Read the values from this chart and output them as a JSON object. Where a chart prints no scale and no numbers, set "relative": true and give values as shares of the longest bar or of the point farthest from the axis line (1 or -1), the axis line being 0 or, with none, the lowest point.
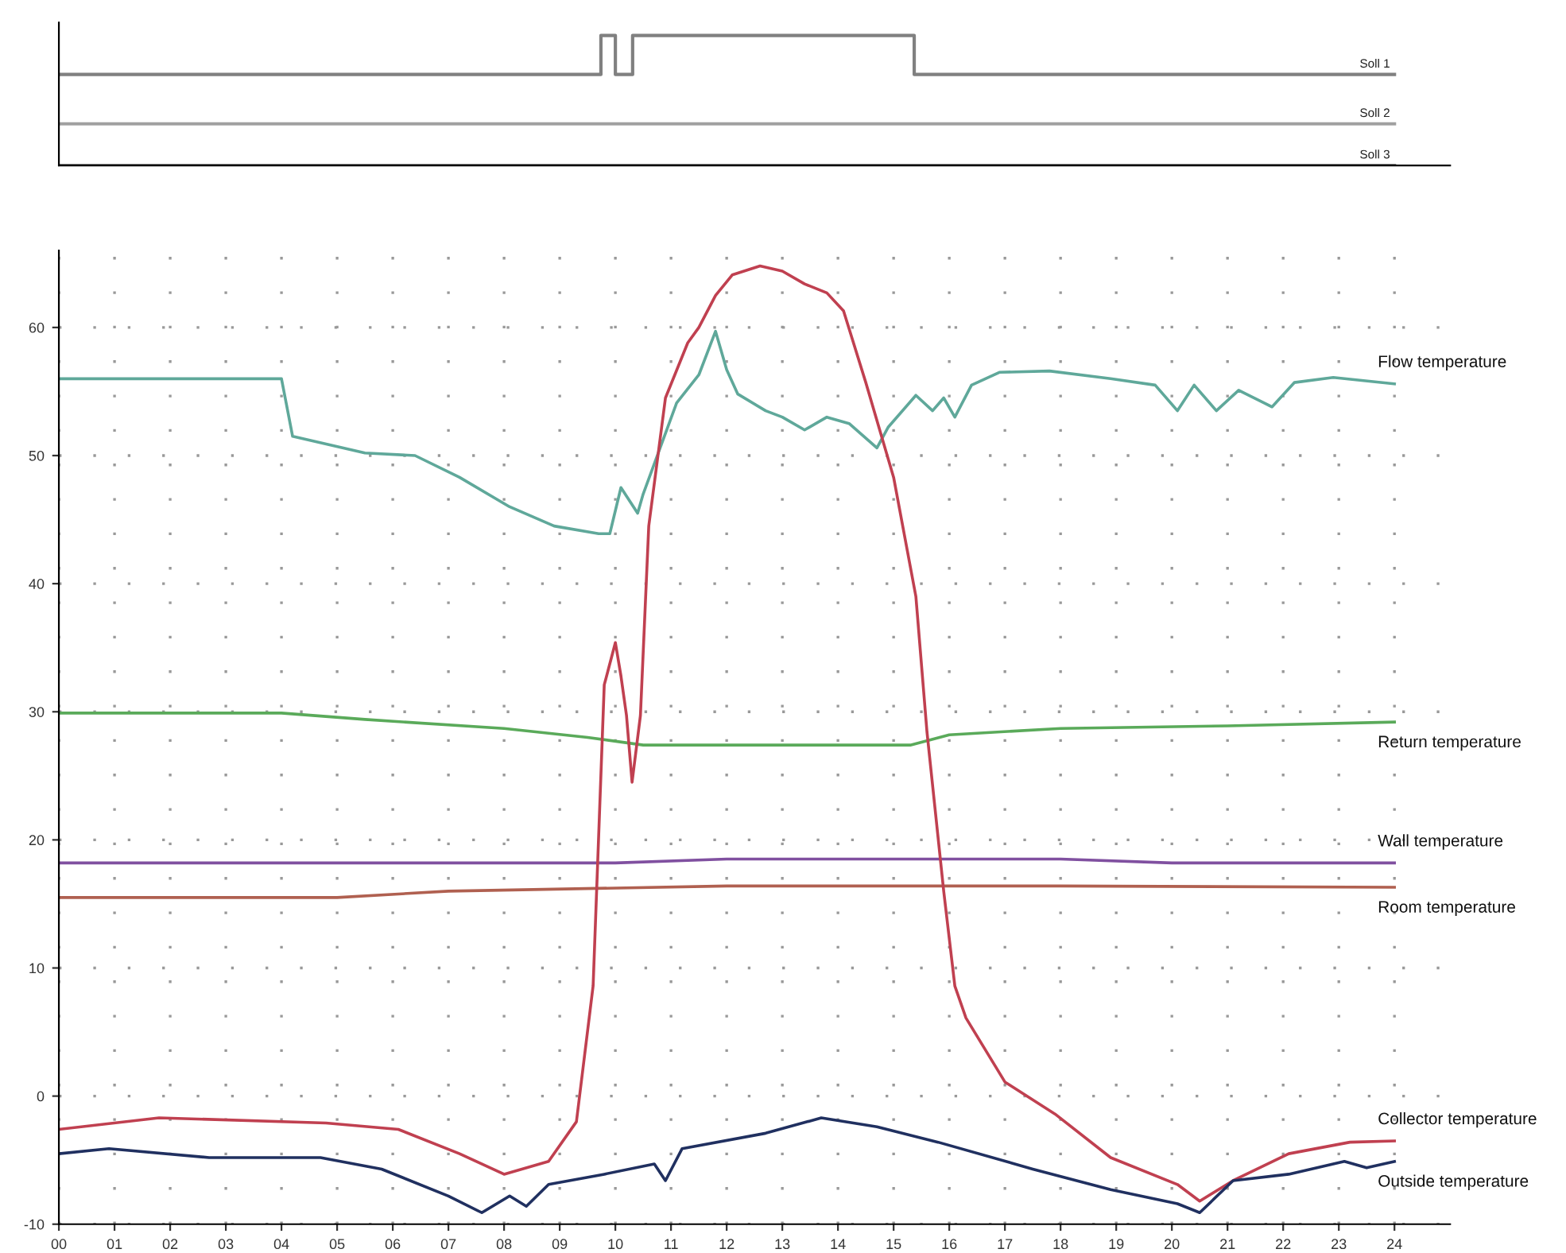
{
  "chart_data": [
    {
      "type": "step",
      "relative": true,
      "tick_labels": false,
      "xlim": [
        0,
        25
      ],
      "grid": false,
      "legend": false,
      "series": [
        {
          "name": "Soll 1",
          "color": "#808080",
          "x": [
            0,
            9.74,
            10.0,
            10.31,
            15.37,
            24
          ],
          "values": [
            0.7,
            1,
            0.7,
            1,
            0.7,
            0.7
          ]
        },
        {
          "name": "Soll 2",
          "color": "#a0a0a0",
          "x": [
            0,
            24
          ],
          "values": [
            0.32,
            0.32
          ]
        },
        {
          "name": "Soll 3",
          "color": "#808080",
          "x": [
            0,
            24
          ],
          "values": [
            0,
            0
          ]
        }
      ]
    },
    {
      "type": "line",
      "xlim": [
        0,
        25
      ],
      "ylim": [
        -10,
        66
      ],
      "grid": true,
      "legend": false,
      "marker": "none",
      "line_style": "solid",
      "xticks": [
        {
          "value": 0,
          "label": "00"
        },
        {
          "value": 1,
          "label": "01"
        },
        {
          "value": 2,
          "label": "02"
        },
        {
          "value": 3,
          "label": "03"
        },
        {
          "value": 4,
          "label": "04"
        },
        {
          "value": 5,
          "label": "05"
        },
        {
          "value": 6,
          "label": "06"
        },
        {
          "value": 7,
          "label": "07"
        },
        {
          "value": 8,
          "label": "08"
        },
        {
          "value": 9,
          "label": "09"
        },
        10,
        11,
        12,
        13,
        14,
        15,
        16,
        17,
        18,
        19,
        20,
        21,
        22,
        23,
        24
      ],
      "yticks": [
        -10,
        0,
        10,
        20,
        30,
        40,
        50,
        60
      ],
      "series": [
        {
          "name": "Flow temperature",
          "color": "#5fa89a",
          "x": [
            0,
            4.0,
            4.2,
            5.5,
            6.4,
            7.2,
            8.1,
            8.9,
            9.7,
            9.9,
            10.1,
            10.4,
            10.5,
            11.1,
            11.5,
            11.8,
            12.0,
            12.2,
            12.7,
            13.0,
            13.4,
            13.8,
            14.2,
            14.7,
            14.9,
            15.4,
            15.7,
            15.9,
            16.1,
            16.4,
            16.9,
            17.8,
            18.9,
            19.7,
            20.1,
            20.4,
            20.8,
            21.2,
            21.8,
            22.2,
            22.9,
            24
          ],
          "values": [
            56.0,
            56.0,
            51.5,
            50.2,
            50.0,
            48.3,
            46.0,
            44.5,
            43.9,
            43.9,
            47.5,
            45.5,
            47.0,
            54.1,
            56.3,
            59.7,
            56.7,
            54.8,
            53.5,
            53.0,
            52.0,
            53.0,
            52.5,
            50.6,
            52.2,
            54.7,
            53.5,
            54.5,
            53.0,
            55.5,
            56.5,
            56.6,
            56.0,
            55.5,
            53.5,
            55.5,
            53.5,
            55.1,
            53.8,
            55.7,
            56.1,
            55.6
          ]
        },
        {
          "name": "Return temperature",
          "color": "#5aaa5a",
          "x": [
            0,
            4,
            5.5,
            8,
            9.5,
            10.5,
            15.3,
            16,
            18,
            21,
            24
          ],
          "values": [
            29.9,
            29.9,
            29.4,
            28.7,
            28.0,
            27.4,
            27.4,
            28.2,
            28.7,
            28.9,
            29.2
          ]
        },
        {
          "name": "Wall temperature",
          "color": "#8050a0",
          "x": [
            0,
            10,
            12,
            18,
            20,
            24
          ],
          "values": [
            18.2,
            18.2,
            18.5,
            18.5,
            18.2,
            18.2
          ]
        },
        {
          "name": "Room temperature",
          "color": "#b06050",
          "x": [
            0,
            5,
            7,
            12,
            18,
            24
          ],
          "values": [
            15.5,
            15.5,
            16.0,
            16.4,
            16.4,
            16.3
          ]
        },
        {
          "name": "Collector temperature",
          "color": "#c04050",
          "x": [
            0,
            1.8,
            4.8,
            6.1,
            7.2,
            8.0,
            8.8,
            9.3,
            9.6,
            9.8,
            10.0,
            10.1,
            10.2,
            10.3,
            10.45,
            10.6,
            10.9,
            11.3,
            11.5,
            11.8,
            12.1,
            12.6,
            13.0,
            13.4,
            13.8,
            14.1,
            14.5,
            15.0,
            15.4,
            15.6,
            15.9,
            16.1,
            16.3,
            17.0,
            17.9,
            18.9,
            20.1,
            20.5,
            21.1,
            22.1,
            23.2,
            24
          ],
          "values": [
            -2.6,
            -1.7,
            -2.1,
            -2.6,
            -4.5,
            -6.1,
            -5.1,
            -2.0,
            8.6,
            32.1,
            35.4,
            32.8,
            29.7,
            24.5,
            29.7,
            44.5,
            54.5,
            58.8,
            60.0,
            62.5,
            64.1,
            64.8,
            64.4,
            63.4,
            62.7,
            61.3,
            55.7,
            48.3,
            39.0,
            28.4,
            16.0,
            8.6,
            6.1,
            1.1,
            -1.4,
            -4.8,
            -6.9,
            -8.2,
            -6.6,
            -4.5,
            -3.6,
            -3.5
          ]
        },
        {
          "name": "Outside temperature",
          "color": "#203060",
          "x": [
            0,
            0.9,
            2.7,
            4.7,
            5.8,
            7.0,
            7.6,
            8.1,
            8.4,
            8.8,
            9.8,
            10.7,
            10.9,
            11.2,
            12.7,
            13.7,
            14.7,
            15.8,
            17.5,
            18.9,
            20.1,
            20.5,
            21.1,
            22.1,
            23.1,
            23.5,
            24
          ],
          "values": [
            -4.5,
            -4.1,
            -4.8,
            -4.8,
            -5.7,
            -7.8,
            -9.1,
            -7.8,
            -8.6,
            -6.9,
            -6.1,
            -5.3,
            -6.6,
            -4.1,
            -2.9,
            -1.7,
            -2.4,
            -3.6,
            -5.7,
            -7.3,
            -8.4,
            -9.1,
            -6.6,
            -6.1,
            -5.1,
            -5.6,
            -5.1
          ]
        }
      ]
    }
  ]
}
